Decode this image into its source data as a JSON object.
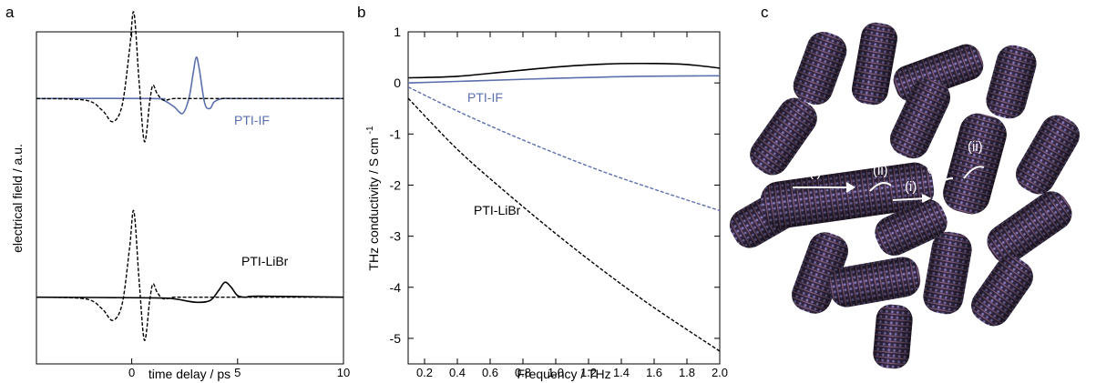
{
  "chart_data": [
    {
      "panel": "a",
      "type": "line",
      "xlabel": "time delay / ps",
      "ylabel": "electrical field / a.u.",
      "xlim": [
        -4.5,
        10
      ],
      "x_ticks": [
        0,
        5,
        10
      ],
      "series": [
        {
          "name": "PTI-IF",
          "color": "#5b6fad",
          "dash": "solid",
          "offset": 0.6,
          "x": [
            -4.5,
            1.0,
            1.5,
            2.0,
            2.4,
            2.7,
            2.9,
            3.05,
            3.2,
            3.45,
            3.7,
            3.9,
            4.3,
            5.0,
            10.0
          ],
          "y": [
            0,
            0,
            -0.01,
            -0.05,
            -0.09,
            0.0,
            0.15,
            0.25,
            0.17,
            -0.03,
            -0.06,
            -0.02,
            0,
            0,
            0
          ]
        },
        {
          "name": "",
          "color": "#000000",
          "dash": "dashed",
          "offset": 0.6,
          "x": [
            -4.5,
            -2.2,
            -1.4,
            -0.9,
            -0.45,
            -0.1,
            0.1,
            0.35,
            0.6,
            0.85,
            1.0,
            1.2,
            1.5,
            2.0,
            3.0,
            10.0
          ],
          "y": [
            0,
            -0.01,
            -0.07,
            -0.14,
            -0.04,
            0.3,
            0.52,
            0.1,
            -0.26,
            -0.02,
            0.08,
            0.03,
            -0.01,
            0,
            0,
            0
          ]
        },
        {
          "name": "PTI-LiBr",
          "color": "#000000",
          "dash": "solid",
          "offset": -0.6,
          "x": [
            -4.5,
            1.0,
            2.0,
            3.0,
            3.7,
            4.1,
            4.4,
            4.7,
            5.0,
            5.4,
            6.0,
            10.0
          ],
          "y": [
            0,
            -0.004,
            -0.01,
            -0.03,
            -0.02,
            0.04,
            0.09,
            0.06,
            0.01,
            0.0,
            0.006,
            0
          ]
        },
        {
          "name": "",
          "color": "#000000",
          "dash": "dashed",
          "offset": -0.6,
          "x": [
            -4.5,
            -2.2,
            -1.4,
            -0.9,
            -0.45,
            -0.1,
            0.1,
            0.35,
            0.6,
            0.85,
            1.0,
            1.2,
            1.5,
            2.0,
            3.0,
            10.0
          ],
          "y": [
            0,
            -0.01,
            -0.07,
            -0.14,
            -0.04,
            0.3,
            0.52,
            0.1,
            -0.26,
            -0.02,
            0.08,
            0.03,
            -0.01,
            0,
            0,
            0
          ]
        }
      ],
      "labels": [
        {
          "text": "PTI-IF",
          "color": "#5b6fad"
        },
        {
          "text": "PTI-LiBr",
          "color": "#000000"
        }
      ]
    },
    {
      "panel": "b",
      "type": "line",
      "xlabel": "Frequency / THz",
      "ylabel": "THz conductivity / S cm",
      "ylabel_superscript": "-1",
      "xlim": [
        0.1,
        2.0
      ],
      "ylim": [
        -5.5,
        1.0
      ],
      "x_ticks": [
        "0.2",
        "0.4",
        "0.6",
        "0.8",
        "1.0",
        "1.2",
        "1.4",
        "1.6",
        "1.8",
        "2.0"
      ],
      "y_ticks": [
        "1",
        "0",
        "-1",
        "-2",
        "-3",
        "-4",
        "-5"
      ],
      "series": [
        {
          "name": "",
          "color": "#000000",
          "dash": "solid",
          "x": [
            0.1,
            0.4,
            0.7,
            1.0,
            1.3,
            1.6,
            1.8,
            2.0
          ],
          "y": [
            0.1,
            0.13,
            0.22,
            0.31,
            0.37,
            0.38,
            0.36,
            0.29
          ]
        },
        {
          "name": "",
          "color": "#5b6fad",
          "dash": "solid",
          "x": [
            0.1,
            0.5,
            1.0,
            1.5,
            2.0
          ],
          "y": [
            0.0,
            0.04,
            0.09,
            0.13,
            0.14
          ]
        },
        {
          "name": "",
          "color": "#5b6fad",
          "dash": "dashed",
          "x": [
            0.1,
            0.4,
            0.7,
            1.0,
            1.3,
            1.6,
            2.0
          ],
          "y": [
            -0.08,
            -0.55,
            -0.98,
            -1.38,
            -1.75,
            -2.08,
            -2.5
          ]
        },
        {
          "name": "",
          "color": "#000000",
          "dash": "dashed",
          "x": [
            0.1,
            0.4,
            0.7,
            1.0,
            1.3,
            1.6,
            2.0
          ],
          "y": [
            -0.3,
            -1.3,
            -2.15,
            -2.95,
            -3.7,
            -4.4,
            -5.25
          ]
        }
      ],
      "labels": [
        {
          "text": "PTI-IF",
          "color": "#5b6fad"
        },
        {
          "text": "PTI-LiBr",
          "color": "#000000"
        }
      ]
    }
  ],
  "panel_c": {
    "annotations": [
      "(i)",
      "(ii)",
      "(i)",
      "(ii)",
      "(ii)"
    ]
  },
  "panel_letters": [
    "a",
    "b",
    "c"
  ]
}
